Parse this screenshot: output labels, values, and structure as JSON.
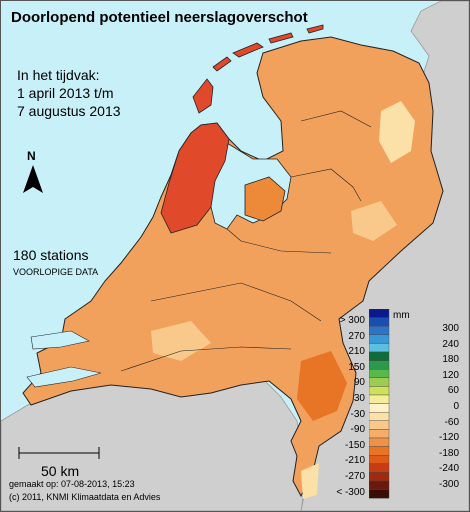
{
  "map": {
    "title": "Doorlopend potentieel neerslagoverschot",
    "period_label": "In het tijdvak:",
    "period_start": "1 april 2013 t/m",
    "period_end": "7 augustus 2013",
    "north_label": "N",
    "stations": "180 stations",
    "data_status": "VOORLOPIGE DATA",
    "scale_label": "50 km",
    "made_on": "gemaakt op: 07-08-2013, 15:23",
    "copyright": "(c) 2011, KNMI Klimaatdata en Advies"
  },
  "legend": {
    "unit": "mm",
    "left_labels": [
      "> 300",
      "270",
      "210",
      "150",
      "90",
      "30",
      "-30",
      "-90",
      "-150",
      "-210",
      "-270",
      "< -300"
    ],
    "right_labels": [
      "300",
      "240",
      "180",
      "120",
      "60",
      "0",
      "-60",
      "-120",
      "-180",
      "-240",
      "-300"
    ],
    "colors": [
      "#0a1a8c",
      "#1a4fb0",
      "#2b74c8",
      "#3a97d6",
      "#5bbfe0",
      "#0e6e3a",
      "#2c9a4c",
      "#5ab84a",
      "#9acd52",
      "#cfe05a",
      "#f6ed9c",
      "#fff1c8",
      "#fbe0a8",
      "#f8c98a",
      "#f4ae6a",
      "#ef9146",
      "#e87426",
      "#e05a1a",
      "#c83c14",
      "#a02a10",
      "#6a1a0c",
      "#3a0e06"
    ]
  },
  "colors": {
    "sea": "#c8f0f8",
    "outside_land": "#cfcfcf",
    "wadden_red": "#e04a2a"
  }
}
